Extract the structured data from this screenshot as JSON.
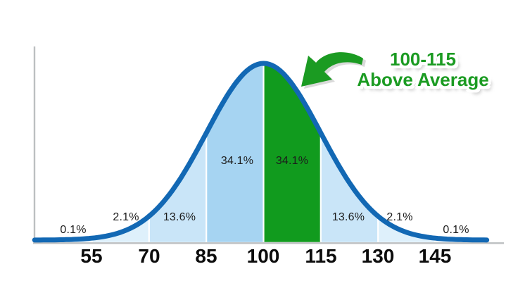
{
  "chart_data": {
    "type": "area",
    "description": "Bell curve (normal distribution) of scores split into standard-deviation bands, with the 100-115 band highlighted",
    "distribution": {
      "mean": 100,
      "std": 15
    },
    "x_ticks": [
      55,
      70,
      85,
      100,
      115,
      130,
      145
    ],
    "boundaries": [
      55,
      70,
      85,
      100,
      115,
      130,
      145
    ],
    "segments": [
      {
        "range": [
          40,
          55
        ],
        "label": "0.1%",
        "color": "#eaf5fd",
        "highlighted": false
      },
      {
        "range": [
          55,
          70
        ],
        "label": "2.1%",
        "color": "#def0fb",
        "highlighted": false
      },
      {
        "range": [
          70,
          85
        ],
        "label": "13.6%",
        "color": "#c9e5f8",
        "highlighted": false
      },
      {
        "range": [
          85,
          100
        ],
        "label": "34.1%",
        "color": "#a6d4f2",
        "highlighted": false
      },
      {
        "range": [
          100,
          115
        ],
        "label": "34.1%",
        "color": "#119b1e",
        "highlighted": true
      },
      {
        "range": [
          115,
          130
        ],
        "label": "13.6%",
        "color": "#c9e5f8",
        "highlighted": false
      },
      {
        "range": [
          130,
          145
        ],
        "label": "2.1%",
        "color": "#def0fb",
        "highlighted": false
      },
      {
        "range": [
          145,
          159
        ],
        "label": "0.1%",
        "color": "#eaf5fd",
        "highlighted": false
      }
    ],
    "annotation": {
      "line1": "100-115",
      "line2": "Above Average"
    }
  },
  "colors": {
    "curve": "#1268b4",
    "highlight": "#119b1e",
    "annotation_text": "#1b9b22",
    "arrow": "#1b9b22",
    "arrow_shadow": "#c2c2c2",
    "axis": "#bcbfc1",
    "divider": "#ffffff",
    "tick_text": "#0c0c0c",
    "pct_text": "#1c1c1c"
  }
}
